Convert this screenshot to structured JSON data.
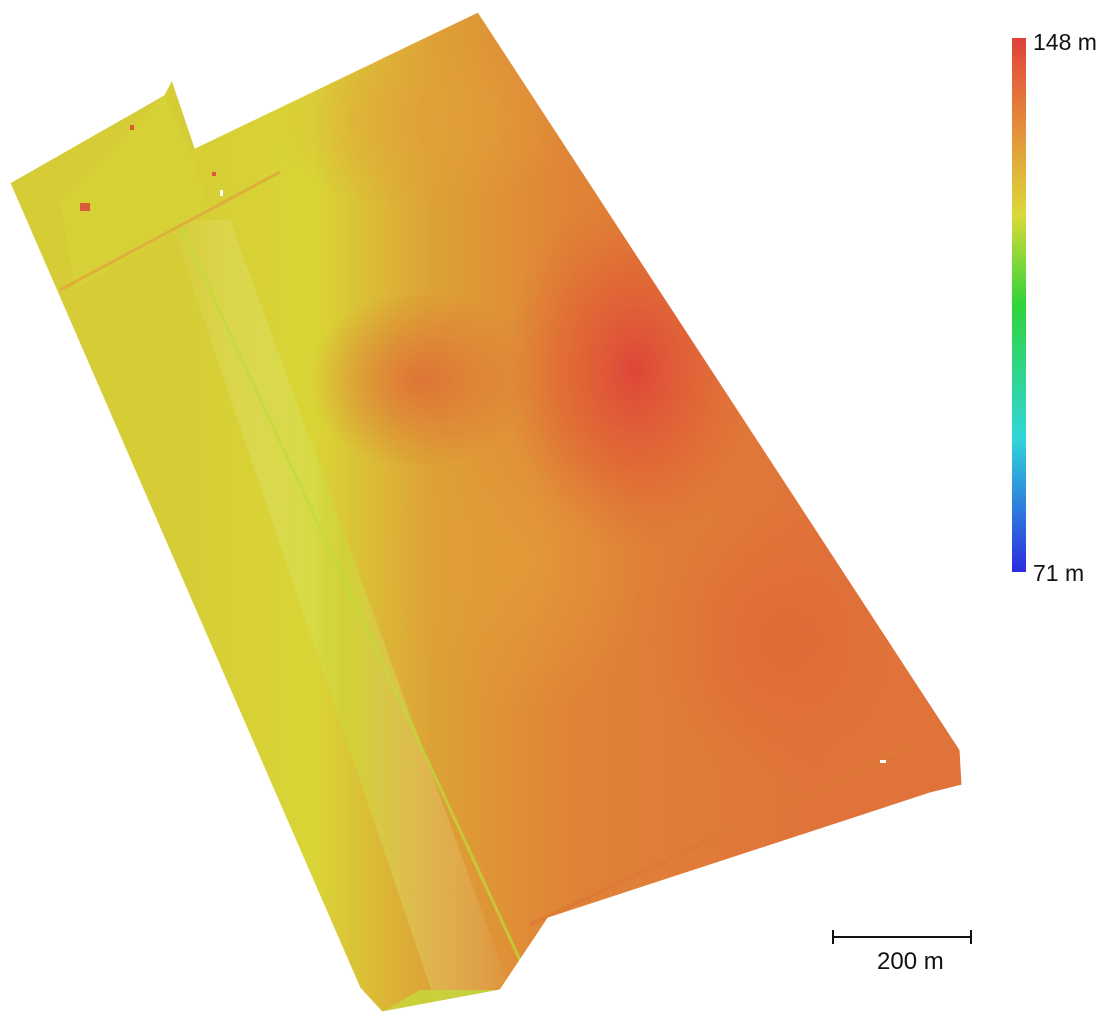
{
  "map": {
    "colors": {
      "low": "#2b2ce0",
      "cyan": "#31d6da",
      "green": "#2fd43a",
      "yellow": "#dcd93a",
      "orange": "#e38e3a",
      "high": "#e0413b"
    }
  },
  "legend": {
    "max_label": "148 m",
    "min_label": "71 m",
    "max_value": 148,
    "min_value": 71,
    "unit": "m"
  },
  "scale_bar": {
    "label": "200 m"
  }
}
